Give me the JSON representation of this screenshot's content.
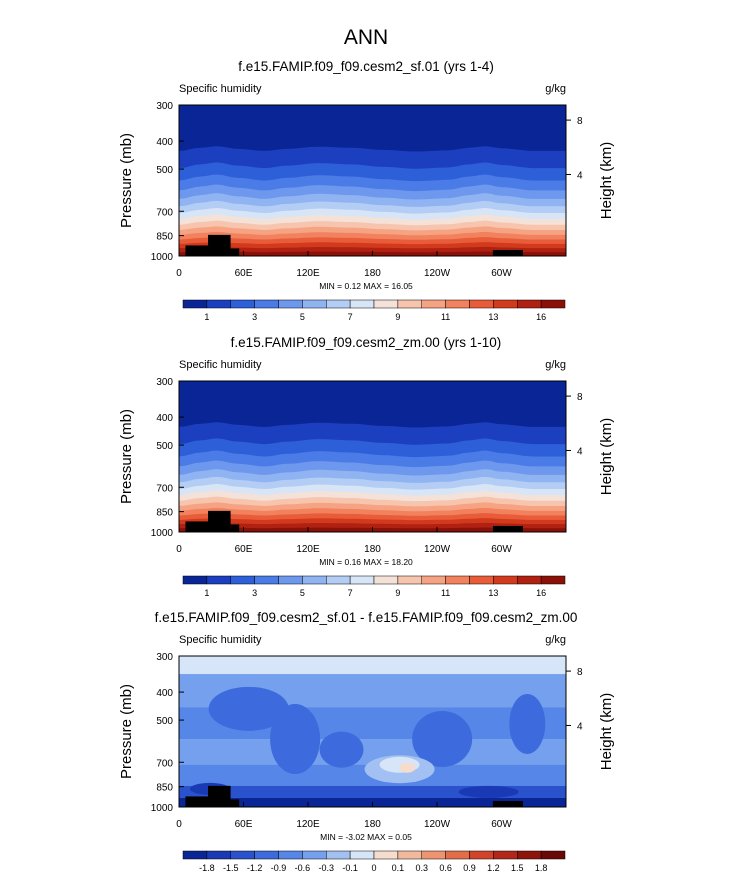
{
  "main_title": "ANN",
  "chart_data": [
    {
      "type": "contour",
      "title": "f.e15.FAMIP.f09_f09.cesm2_sf.01 (yrs 1-4)",
      "variable": "Specific humidity",
      "units": "g/kg",
      "ylabel": "Pressure (mb)",
      "ylabel_right": "Height (km)",
      "x_ticks": [
        "0",
        "60E",
        "120E",
        "180",
        "120W",
        "60W"
      ],
      "y_ticks": [
        "300",
        "400",
        "500",
        "700",
        "850",
        "1000"
      ],
      "right_ticks": [
        "8",
        "4"
      ],
      "stats_label": "MIN =   0.12   MAX =   16.05",
      "min": 0.12,
      "max": 16.05,
      "colorbar": {
        "labels": [
          "1",
          "3",
          "5",
          "7",
          "9",
          "11",
          "13",
          "16"
        ],
        "colors": [
          "#0a2596",
          "#1c3fc0",
          "#2d5fd8",
          "#4b7be6",
          "#6d98ee",
          "#90b3f2",
          "#b3cdf5",
          "#d7e5f7",
          "#f4e2d8",
          "#f7c4ae",
          "#f6a383",
          "#f2815e",
          "#e85c3a",
          "#d23a1e",
          "#b02112",
          "#8a1008"
        ]
      }
    },
    {
      "type": "contour",
      "title": "f.e15.FAMIP.f09_f09.cesm2_zm.00 (yrs 1-10)",
      "variable": "Specific humidity",
      "units": "g/kg",
      "ylabel": "Pressure (mb)",
      "ylabel_right": "Height (km)",
      "x_ticks": [
        "0",
        "60E",
        "120E",
        "180",
        "120W",
        "60W"
      ],
      "y_ticks": [
        "300",
        "400",
        "500",
        "700",
        "850",
        "1000"
      ],
      "right_ticks": [
        "8",
        "4"
      ],
      "stats_label": "MIN =   0.16   MAX =   18.20",
      "min": 0.16,
      "max": 18.2,
      "colorbar": {
        "labels": [
          "1",
          "3",
          "5",
          "7",
          "9",
          "11",
          "13",
          "16"
        ],
        "colors": [
          "#0a2596",
          "#1c3fc0",
          "#2d5fd8",
          "#4b7be6",
          "#6d98ee",
          "#90b3f2",
          "#b3cdf5",
          "#d7e5f7",
          "#f4e2d8",
          "#f7c4ae",
          "#f6a383",
          "#f2815e",
          "#e85c3a",
          "#d23a1e",
          "#b02112",
          "#8a1008"
        ]
      }
    },
    {
      "type": "contour",
      "title": "f.e15.FAMIP.f09_f09.cesm2_sf.01 - f.e15.FAMIP.f09_f09.cesm2_zm.00",
      "variable": "Specific humidity",
      "units": "g/kg",
      "ylabel": "Pressure (mb)",
      "ylabel_right": "Height (km)",
      "x_ticks": [
        "0",
        "60E",
        "120E",
        "180",
        "120W",
        "60W"
      ],
      "y_ticks": [
        "300",
        "400",
        "500",
        "700",
        "850",
        "1000"
      ],
      "right_ticks": [
        "8",
        "4"
      ],
      "stats_label": "MIN =  -3.02   MAX =   0.05",
      "min": -3.02,
      "max": 0.05,
      "colorbar": {
        "labels": [
          "-1.8",
          "-1.5",
          "-1.2",
          "-0.9",
          "-0.6",
          "-0.3",
          "-0.1",
          "0",
          "0.1",
          "0.3",
          "0.6",
          "0.9",
          "1.2",
          "1.5",
          "1.8"
        ],
        "colors": [
          "#0a2596",
          "#1a39b4",
          "#2a52cc",
          "#3d6adc",
          "#5586e8",
          "#74a0ee",
          "#a2c0f2",
          "#d6e5f8",
          "#f6dccd",
          "#f3b99c",
          "#ee9470",
          "#e46c48",
          "#d1442a",
          "#b3261a",
          "#8e130b",
          "#6a0805"
        ]
      }
    }
  ]
}
